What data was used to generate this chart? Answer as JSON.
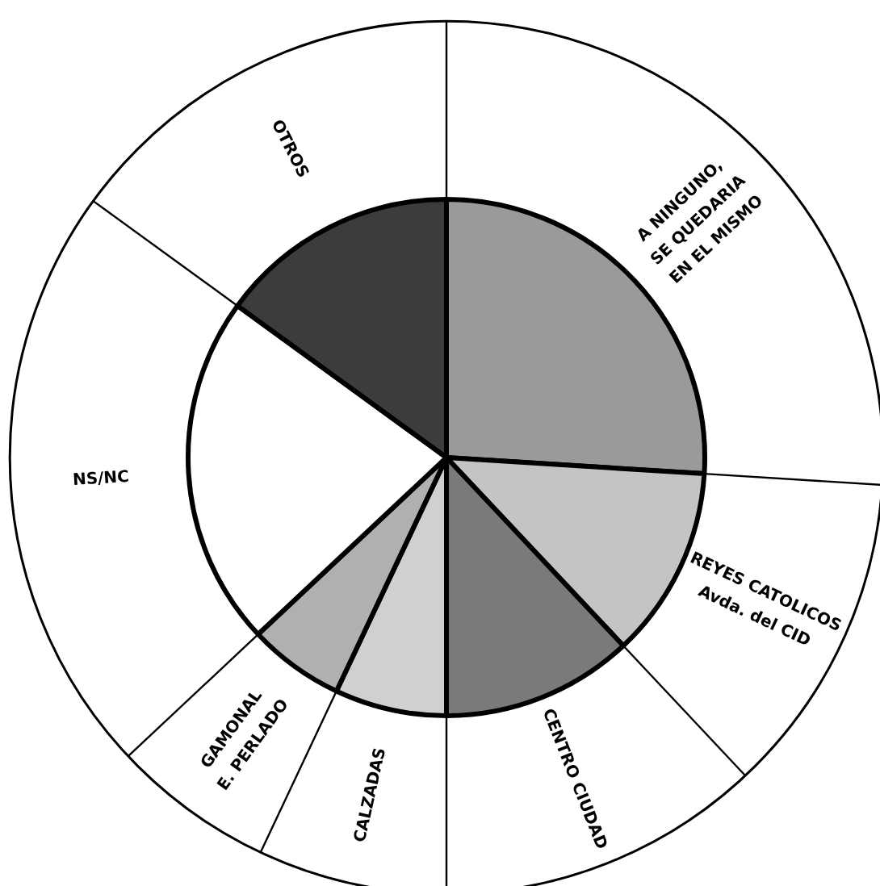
{
  "chart_data": {
    "type": "pie",
    "categories": [
      "A NINGUNO,\nSE QUEDARIA\nEN EL MISMO",
      "REYES CATOLICOS\nAvda. del CID",
      "CENTRO CIUDAD",
      "CALZADAS",
      "GAMONAL\nE. PERLADO",
      "NS/NC",
      "OTROS"
    ],
    "values": [
      26,
      12,
      12,
      7,
      6,
      22,
      15
    ],
    "colors": [
      "#9a9a9a",
      "#c4c4c4",
      "#7a7a7a",
      "#d0d0d0",
      "#b0b0b0",
      "#ffffff",
      "#3c3c3c"
    ]
  }
}
